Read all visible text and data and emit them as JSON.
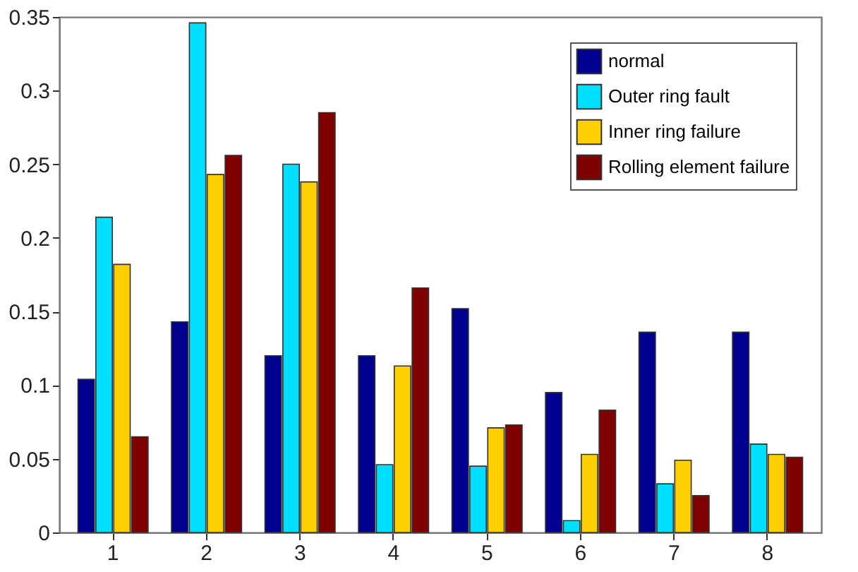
{
  "chart_data": {
    "type": "bar",
    "categories": [
      "1",
      "2",
      "3",
      "4",
      "5",
      "6",
      "7",
      "8"
    ],
    "series": [
      {
        "name": "normal",
        "color": "#00008f",
        "values": [
          0.104,
          0.143,
          0.12,
          0.12,
          0.152,
          0.095,
          0.136,
          0.136
        ]
      },
      {
        "name": "Outer ring fault",
        "color": "#00dfff",
        "values": [
          0.214,
          0.346,
          0.25,
          0.046,
          0.045,
          0.008,
          0.033,
          0.06
        ]
      },
      {
        "name": "Inner ring failure",
        "color": "#ffcf00",
        "values": [
          0.182,
          0.243,
          0.238,
          0.113,
          0.071,
          0.053,
          0.049,
          0.053
        ]
      },
      {
        "name": "Rolling element failure",
        "color": "#800000",
        "values": [
          0.065,
          0.256,
          0.285,
          0.166,
          0.073,
          0.083,
          0.025,
          0.051
        ]
      }
    ],
    "ylim": [
      0,
      0.35
    ],
    "yticks": [
      0,
      0.05,
      0.1,
      0.15,
      0.2,
      0.25,
      0.3,
      0.35
    ],
    "grid": false,
    "legend": "top right"
  }
}
